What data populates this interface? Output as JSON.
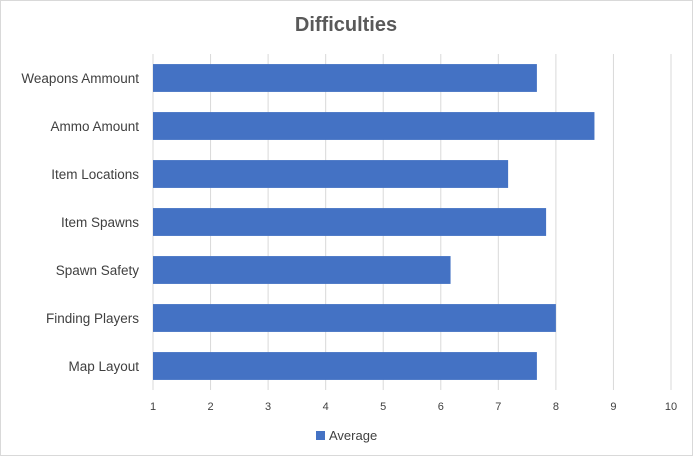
{
  "chart_data": {
    "type": "bar",
    "orientation": "horizontal",
    "title": "Difficulties",
    "categories": [
      "Weapons Ammount",
      "Ammo Amount",
      "Item Locations",
      "Item Spawns",
      "Spawn Safety",
      "Finding Players",
      "Map Layout"
    ],
    "series": [
      {
        "name": "Average",
        "color": "#4472C4",
        "values": [
          7.67,
          8.67,
          7.17,
          7.83,
          6.17,
          8.0,
          7.67
        ]
      }
    ],
    "xlim": [
      1,
      10
    ],
    "xticks": [
      "1",
      "2",
      "3",
      "4",
      "5",
      "6",
      "7",
      "8",
      "9",
      "10"
    ],
    "grid": "vertical",
    "legend_position": "bottom",
    "colors": {
      "bar": "#4472C4",
      "grid": "#d9d9d9",
      "axis_text": "#404040",
      "title": "#595959"
    }
  }
}
